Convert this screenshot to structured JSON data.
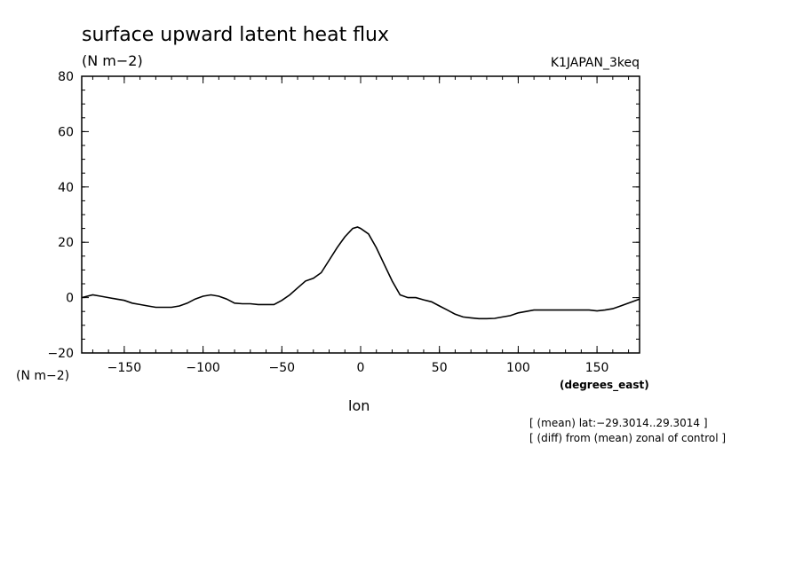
{
  "chart_data": {
    "type": "line",
    "title": "surface upward latent heat flux",
    "yunit_top": "(N m−2)",
    "yunit_bottom": "(N m−2)",
    "experiment": "K1JAPAN_3keq",
    "xlabel": "lon",
    "xunit": "(degrees_east)",
    "xlim": [
      -177,
      177
    ],
    "ylim": [
      -20,
      80
    ],
    "xticks": [
      -150,
      -100,
      -50,
      0,
      50,
      100,
      150
    ],
    "xtick_labels": [
      "−150",
      "−100",
      "−50",
      "0",
      "50",
      "100",
      "150"
    ],
    "yticks": [
      -20,
      0,
      20,
      40,
      60,
      80
    ],
    "ytick_labels": [
      "−20",
      "0",
      "20",
      "40",
      "60",
      "80"
    ],
    "annotations": [
      "[ (mean) lat:−29.3014..29.3014 ]",
      "[ (diff) from (mean) zonal of control ]"
    ],
    "series": [
      {
        "x": [
          -177,
          -170,
          -165,
          -160,
          -155,
          -150,
          -145,
          -140,
          -135,
          -130,
          -125,
          -120,
          -115,
          -110,
          -105,
          -100,
          -95,
          -90,
          -85,
          -80,
          -75,
          -70,
          -65,
          -60,
          -55,
          -50,
          -45,
          -40,
          -35,
          -30,
          -25,
          -20,
          -15,
          -10,
          -5,
          -2,
          0,
          5,
          10,
          15,
          20,
          25,
          30,
          35,
          40,
          45,
          50,
          55,
          60,
          65,
          70,
          75,
          80,
          85,
          90,
          95,
          100,
          105,
          110,
          115,
          120,
          125,
          130,
          135,
          140,
          145,
          150,
          155,
          160,
          165,
          170,
          177
        ],
        "y": [
          0,
          1,
          0.5,
          0,
          -0.5,
          -1,
          -2,
          -2.5,
          -3,
          -3.5,
          -3.5,
          -3.5,
          -3,
          -2,
          -0.5,
          0.5,
          1,
          0.5,
          -0.5,
          -2,
          -2.2,
          -2.2,
          -2.5,
          -2.5,
          -2.5,
          -1,
          1,
          3.5,
          6,
          7,
          9,
          13.5,
          18,
          22,
          25,
          25.5,
          25,
          23,
          18,
          12,
          6,
          1,
          0,
          0,
          -0.8,
          -1.5,
          -3,
          -4.5,
          -6,
          -7,
          -7.3,
          -7.6,
          -7.6,
          -7.5,
          -7,
          -6.5,
          -5.5,
          -5,
          -4.5,
          -4.5,
          -4.5,
          -4.5,
          -4.5,
          -4.5,
          -4.5,
          -4.5,
          -4.8,
          -4.5,
          -4,
          -3,
          -2,
          -0.5
        ]
      }
    ]
  }
}
